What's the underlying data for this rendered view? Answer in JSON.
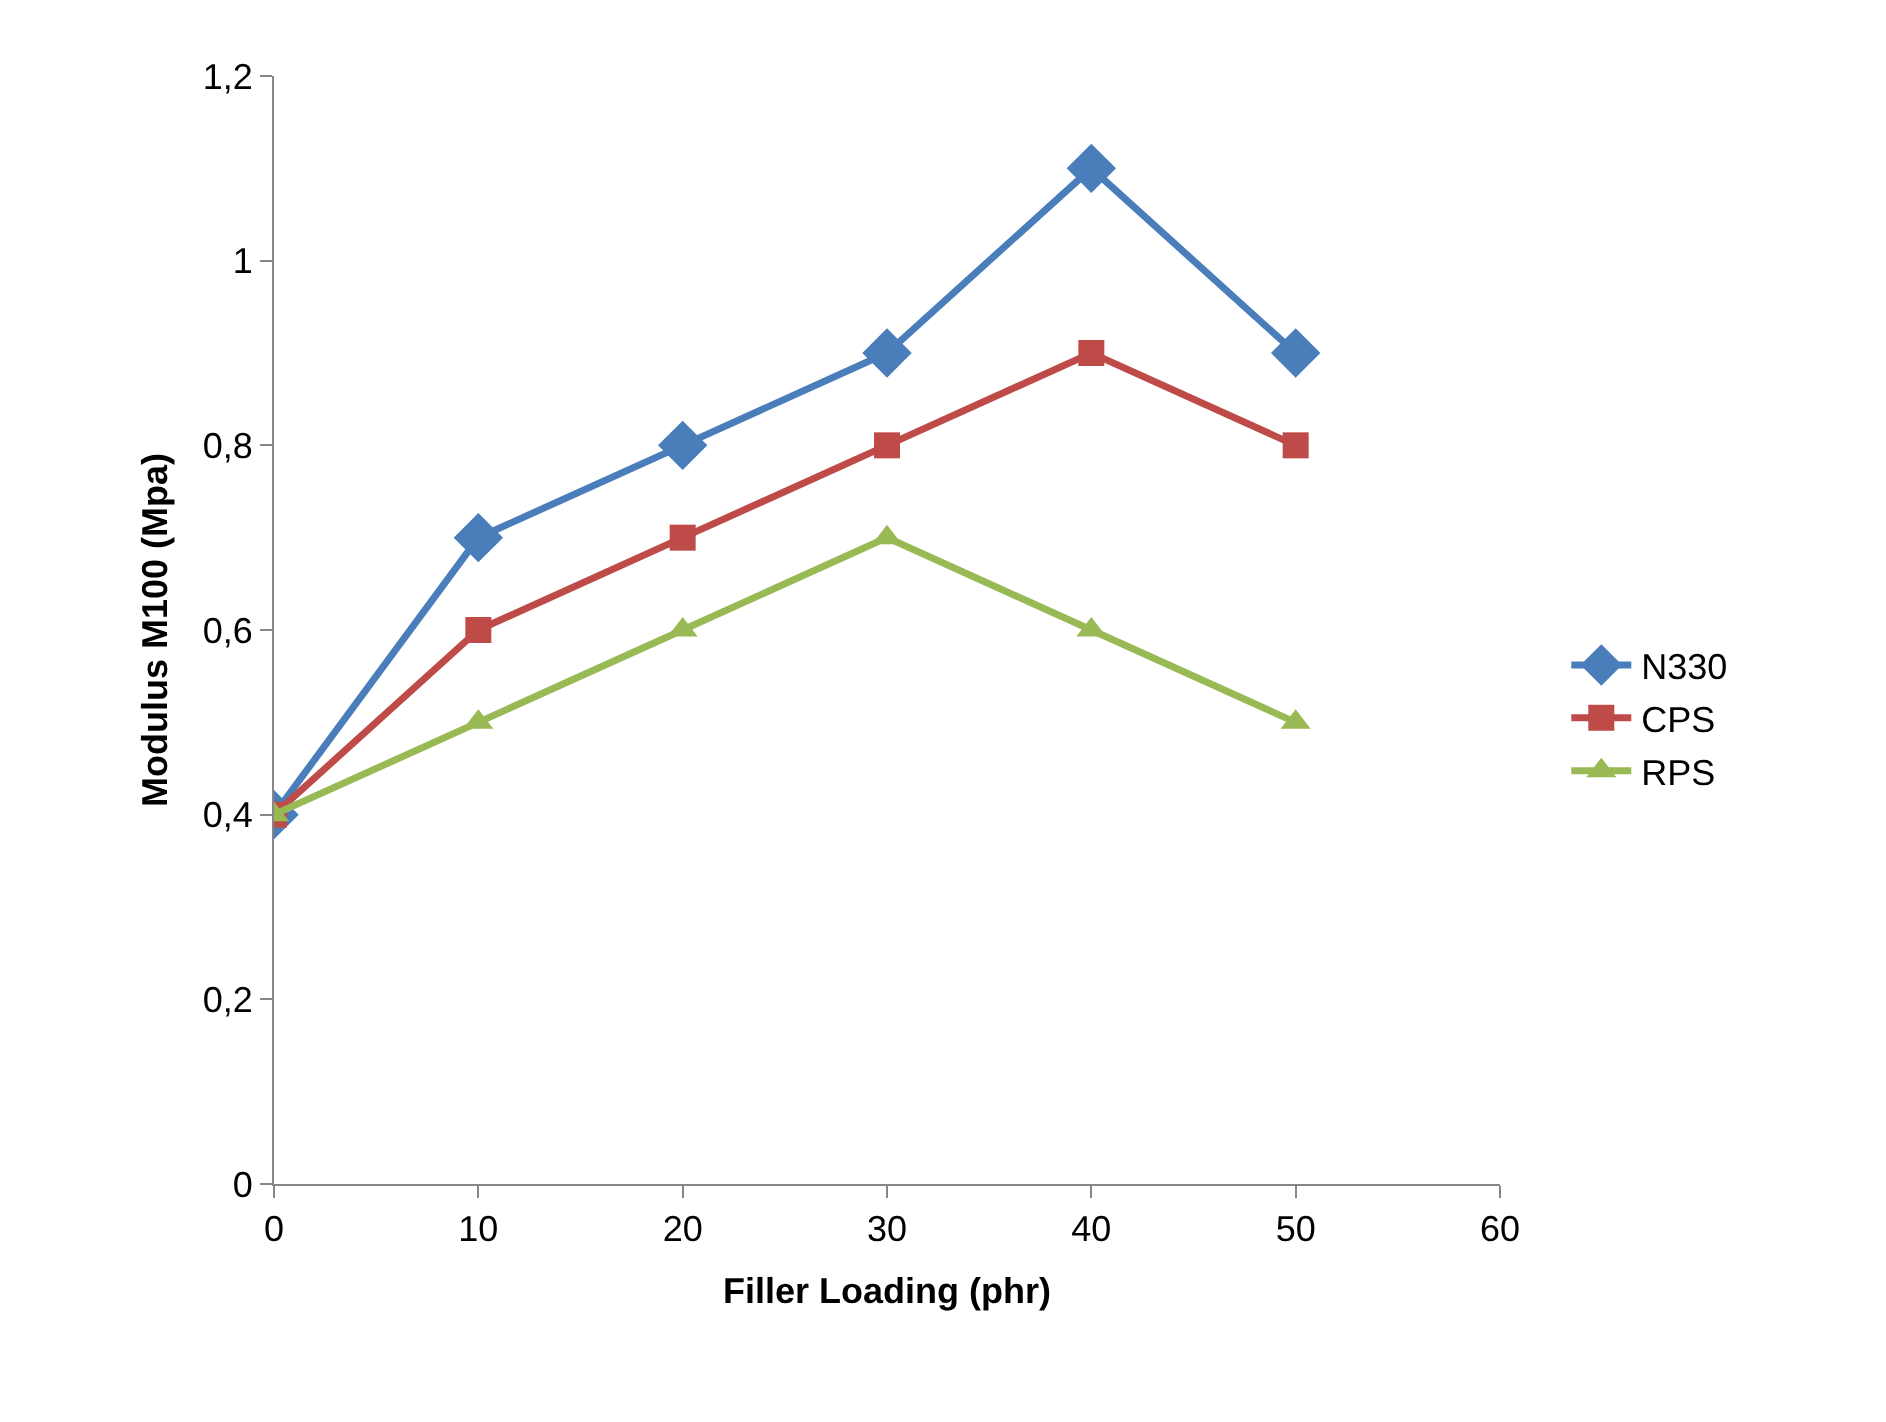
{
  "chart_data": {
    "type": "line",
    "xlabel": "Filler Loading (phr)",
    "ylabel": "Modulus M100 (Mpa)",
    "x": [
      0,
      10,
      20,
      30,
      40,
      50
    ],
    "series": [
      {
        "name": "N330",
        "color": "#4a7ebb",
        "marker": "diamond",
        "values": [
          0.4,
          0.7,
          0.8,
          0.9,
          1.1,
          0.9
        ]
      },
      {
        "name": "CPS",
        "color": "#be4b48",
        "marker": "square",
        "values": [
          0.4,
          0.6,
          0.7,
          0.8,
          0.9,
          0.8
        ]
      },
      {
        "name": "RPS",
        "color": "#98b954",
        "marker": "triangle",
        "values": [
          0.4,
          0.5,
          0.6,
          0.7,
          0.6,
          0.5
        ]
      }
    ],
    "xlim": [
      0,
      60
    ],
    "xticks": [
      0,
      10,
      20,
      30,
      40,
      50,
      60
    ],
    "ylim": [
      0,
      1.2
    ],
    "yticks": [
      0,
      {
        "value": 0.2,
        "label": "0,2"
      },
      {
        "value": 0.4,
        "label": "0,4"
      },
      {
        "value": 0.6,
        "label": "0,6"
      },
      {
        "value": 0.8,
        "label": "0,8"
      },
      1,
      {
        "value": 1.2,
        "label": "1,2"
      }
    ],
    "grid": false,
    "legend": "right",
    "line_style": "solid"
  }
}
